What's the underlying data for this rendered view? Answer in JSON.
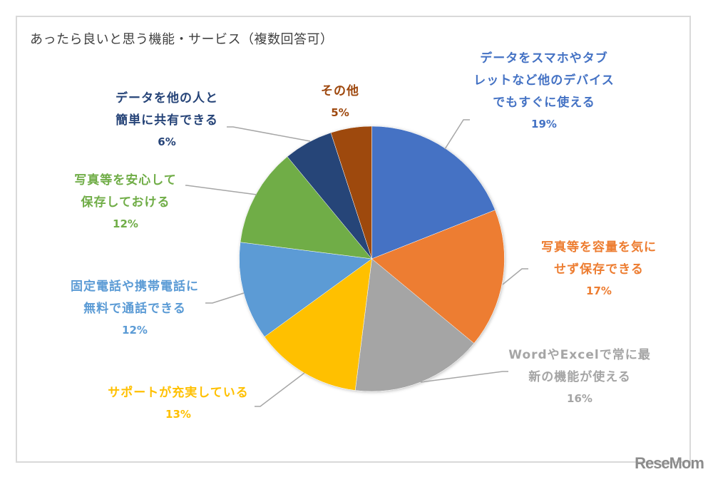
{
  "chart_data": {
    "type": "pie",
    "title": "あったら良いと思う機能・サービス（複数回答可）",
    "start_angle": "12 o'clock, clockwise",
    "legend": "none (data labels with leader lines)",
    "slices": [
      {
        "label": "データをスマホやタブレットなど他のデバイスでもすぐに使える",
        "lines": [
          "データをスマホやタブ",
          "レットなど他のデバイス",
          "でもすぐに使える"
        ],
        "value": 19,
        "pct": "19%",
        "color": "#4472C4"
      },
      {
        "label": "写真等を容量を気にせず保存できる",
        "lines": [
          "写真等を容量を気に",
          "せず保存できる"
        ],
        "value": 17,
        "pct": "17%",
        "color": "#ED7D31"
      },
      {
        "label": "WordやExcelで常に最新の機能が使える",
        "lines": [
          "WordやExcelで常に最",
          "新の機能が使える"
        ],
        "value": 16,
        "pct": "16%",
        "color": "#A5A5A5"
      },
      {
        "label": "サポートが充実している",
        "lines": [
          "サポートが充実している"
        ],
        "value": 13,
        "pct": "13%",
        "color": "#FFC000"
      },
      {
        "label": "固定電話や携帯電話に無料で通話できる",
        "lines": [
          "固定電話や携帯電話に",
          "無料で通話できる"
        ],
        "value": 12,
        "pct": "12%",
        "color": "#5B9BD5"
      },
      {
        "label": "写真等を安心して保存しておける",
        "lines": [
          "写真等を安心して",
          "保存しておける"
        ],
        "value": 12,
        "pct": "12%",
        "color": "#70AD47"
      },
      {
        "label": "データを他の人と簡単に共有できる",
        "lines": [
          "データを他の人と",
          "簡単に共有できる"
        ],
        "value": 6,
        "pct": "6%",
        "color": "#264478"
      },
      {
        "label": "その他",
        "lines": [
          "その他"
        ],
        "value": 5,
        "pct": "5%",
        "color": "#9E480E"
      }
    ]
  },
  "labels": {
    "s0": {
      "l1": "データをスマホやタブ",
      "l2": "レットなど他のデバイス",
      "l3": "でもすぐに使える",
      "pct": "19%"
    },
    "s1": {
      "l1": "写真等を容量を気に",
      "l2": "せず保存できる",
      "pct": "17%"
    },
    "s2": {
      "l1": "WordやExcelで常に最",
      "l2": "新の機能が使える",
      "pct": "16%"
    },
    "s3": {
      "l1": "サポートが充実している",
      "pct": "13%"
    },
    "s4": {
      "l1": "固定電話や携帯電話に",
      "l2": "無料で通話できる",
      "pct": "12%"
    },
    "s5": {
      "l1": "写真等を安心して",
      "l2": "保存しておける",
      "pct": "12%"
    },
    "s6": {
      "l1": "データを他の人と",
      "l2": "簡単に共有できる",
      "pct": "6%"
    },
    "s7": {
      "l1": "その他",
      "pct": "5%"
    }
  },
  "watermark": "ReseMom"
}
